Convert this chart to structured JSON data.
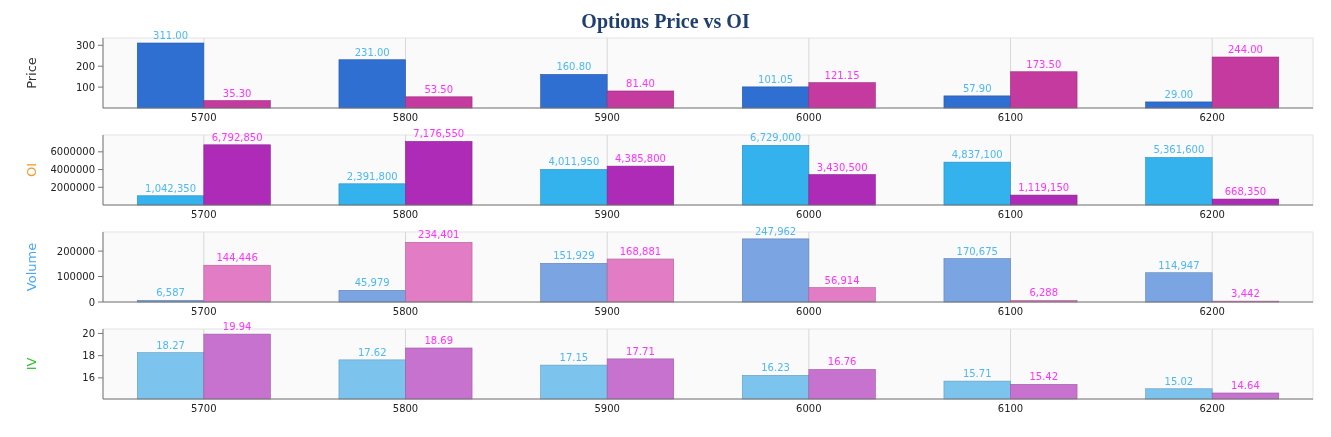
{
  "chart_data": [
    {
      "type": "bar",
      "title": "Options Price vs OI",
      "ylabel": "Price",
      "categories": [
        "5700",
        "5800",
        "5900",
        "6000",
        "6100",
        "6200"
      ],
      "ylim": [
        0,
        335
      ],
      "yticks": [
        100,
        200,
        300
      ],
      "grid": "x",
      "series": [
        {
          "color": "#2f6fd2",
          "values": [
            311.0,
            231.0,
            160.8,
            101.05,
            57.9,
            29.0
          ],
          "value_labels": [
            "311.00",
            "231.00",
            "160.80",
            "101.05",
            "57.90",
            "29.00"
          ]
        },
        {
          "color": "#c43a9e",
          "values": [
            35.3,
            53.5,
            81.4,
            121.15,
            173.5,
            244.0
          ],
          "value_labels": [
            "35.30",
            "53.50",
            "81.40",
            "121.15",
            "173.50",
            "244.00"
          ]
        }
      ]
    },
    {
      "type": "bar",
      "ylabel": "OI",
      "categories": [
        "5700",
        "5800",
        "5900",
        "6000",
        "6100",
        "6200"
      ],
      "ylim": [
        0,
        7900000
      ],
      "yticks": [
        2000000,
        4000000,
        6000000
      ],
      "grid": "x",
      "series": [
        {
          "color": "#33b2ee",
          "values": [
            1042350,
            2391800,
            4011950,
            6729000,
            4837100,
            5361600
          ],
          "value_labels": [
            "1,042,350",
            "2,391,800",
            "4,011,950",
            "6,729,000",
            "4,837,100",
            "5,361,600"
          ]
        },
        {
          "color": "#ad2bb6",
          "values": [
            6792850,
            7176550,
            4385800,
            3430500,
            1119150,
            668350
          ],
          "value_labels": [
            "6,792,850",
            "7,176,550",
            "4,385,800",
            "3,430,500",
            "1,119,150",
            "668,350"
          ]
        }
      ]
    },
    {
      "type": "bar",
      "ylabel": "Volume",
      "categories": [
        "5700",
        "5800",
        "5900",
        "6000",
        "6100",
        "6200"
      ],
      "ylim": [
        0,
        275000
      ],
      "yticks": [
        0,
        100000,
        200000
      ],
      "grid": "x",
      "series": [
        {
          "color": "#7aa4e2",
          "values": [
            6587,
            45979,
            151929,
            247962,
            170675,
            114947
          ],
          "value_labels": [
            "6,587",
            "45,979",
            "151,929",
            "247,962",
            "170,675",
            "114,947"
          ]
        },
        {
          "color": "#e27cc4",
          "values": [
            144446,
            234401,
            168881,
            56914,
            6288,
            3442
          ],
          "value_labels": [
            "144,446",
            "234,401",
            "168,881",
            "56,914",
            "6,288",
            "3,442"
          ]
        }
      ]
    },
    {
      "type": "bar",
      "ylabel": "IV",
      "categories": [
        "5700",
        "5800",
        "5900",
        "6000",
        "6100",
        "6200"
      ],
      "ylim": [
        14.1,
        20.4
      ],
      "yticks": [
        16,
        18,
        20
      ],
      "grid": "x",
      "series": [
        {
          "color": "#7cc4ee",
          "values": [
            18.27,
            17.62,
            17.15,
            16.23,
            15.71,
            15.02
          ],
          "value_labels": [
            "18.27",
            "17.62",
            "17.15",
            "16.23",
            "15.71",
            "15.02"
          ]
        },
        {
          "color": "#c872cf",
          "values": [
            19.94,
            18.69,
            17.71,
            16.76,
            15.42,
            14.64
          ],
          "value_labels": [
            "19.94",
            "18.69",
            "17.71",
            "16.76",
            "15.42",
            "14.64"
          ]
        }
      ]
    }
  ]
}
